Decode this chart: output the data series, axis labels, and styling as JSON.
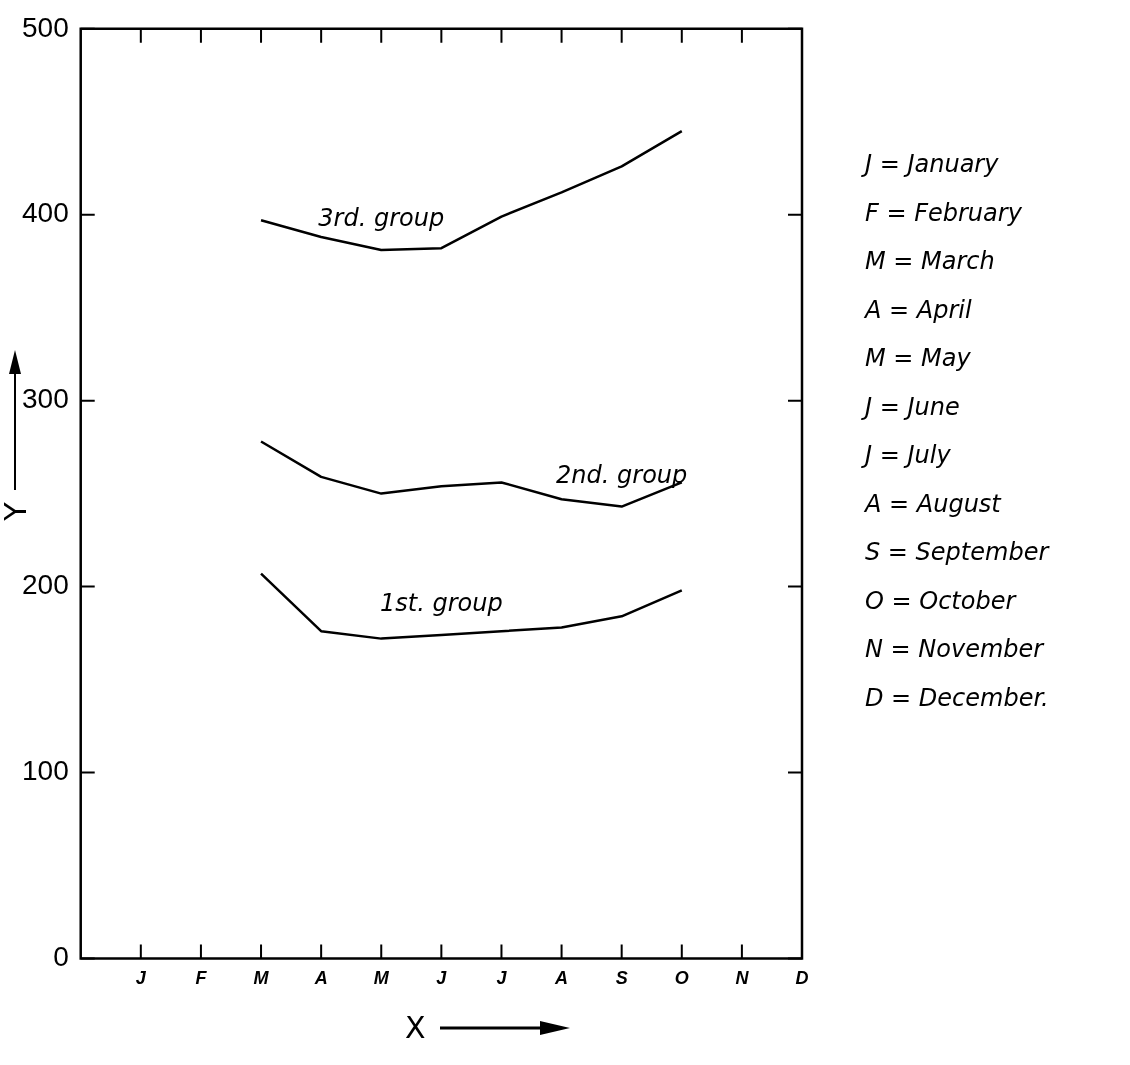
{
  "chart_data": {
    "type": "line",
    "categories": [
      "J",
      "F",
      "M",
      "A",
      "M",
      "J",
      "J",
      "A",
      "S",
      "O",
      "N",
      "D"
    ],
    "series": [
      {
        "name": "3rd. group",
        "color": "#000000",
        "values": [
          null,
          null,
          397,
          388,
          381,
          382,
          399,
          412,
          426,
          445,
          null,
          null
        ]
      },
      {
        "name": "2nd. group",
        "color": "#000000",
        "values": [
          null,
          null,
          278,
          259,
          250,
          254,
          256,
          247,
          243,
          256,
          null,
          null
        ]
      },
      {
        "name": "1st. group",
        "color": "#000000",
        "values": [
          null,
          null,
          207,
          176,
          172,
          174,
          176,
          178,
          184,
          198,
          null,
          null
        ]
      }
    ],
    "xlabel": "X",
    "ylabel": "Y",
    "ylim": [
      0,
      500
    ],
    "yticks": [
      0,
      100,
      200,
      300,
      400,
      500
    ],
    "marker": "none",
    "line_style": "solid",
    "annotations": [
      "J = January",
      "F = February",
      "M = March",
      "A = April",
      "M = May",
      "J = June",
      "J = July",
      "A = August",
      "S = September",
      "O = October",
      "N = November",
      "D = December."
    ]
  }
}
